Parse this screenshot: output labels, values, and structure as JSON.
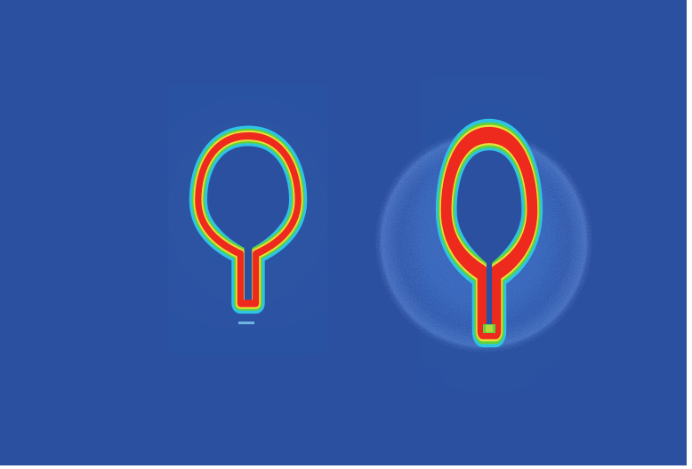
{
  "image": {
    "kind": "false-color intensity map",
    "colors": {
      "background": "#2C50A0",
      "halo": "#4F82D8",
      "cyan": "#2EC4E6",
      "green": "#5DD23C",
      "yellow": "#E8E03A",
      "red": "#EE2A1E"
    },
    "objects": [
      {
        "name": "small-loop",
        "has_halo": false
      },
      {
        "name": "large-loop",
        "has_halo": true
      }
    ]
  }
}
